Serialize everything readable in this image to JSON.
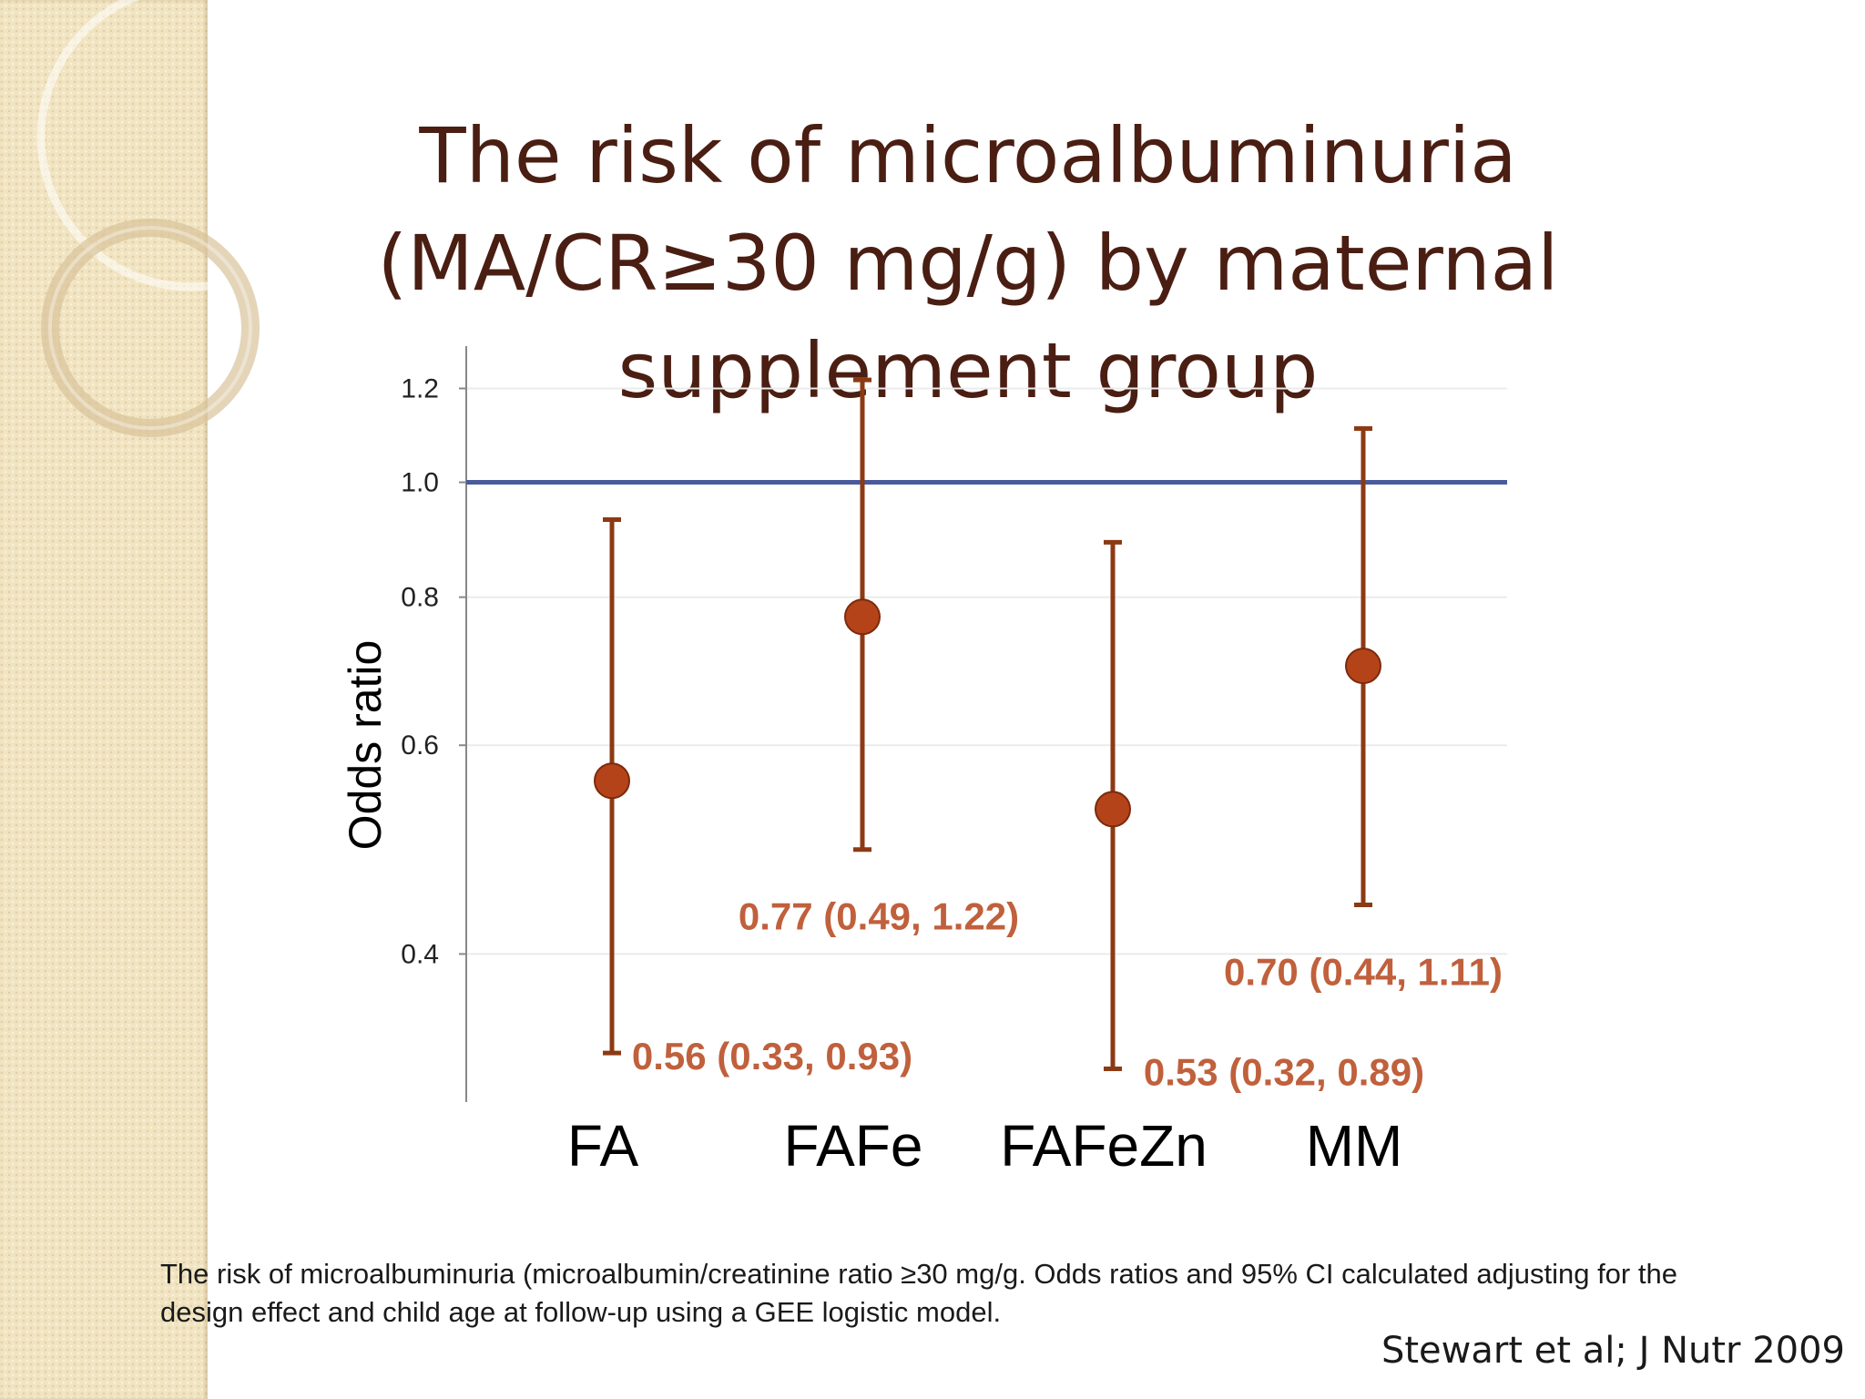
{
  "slide": {
    "title": "The risk of microalbuminuria (MA/CR≥30 mg/g) by maternal supplement group",
    "caption": "The risk of microalbuminuria (microalbumin/creatinine ratio  ≥30 mg/g. Odds ratios and 95% CI calculated adjusting for the design effect and child age at follow-up using a GEE logistic model.",
    "citation": "Stewart et al; J Nutr 2009"
  },
  "colors": {
    "title": "#4a1e12",
    "point": "#b5431a",
    "whisker": "#8c3a14",
    "annotation": "#c0603c",
    "reference_line": "#4a5a9c",
    "axis": "#888888",
    "grid": "#ebebeb"
  },
  "chart_data": {
    "type": "scatter",
    "subtype": "forest-plot",
    "title": "",
    "xlabel": "",
    "ylabel": "Odds ratio",
    "y_scale": "log",
    "ylim": [
      0.3,
      1.28
    ],
    "yticks": [
      0.4,
      0.6,
      0.8,
      1.0,
      1.2
    ],
    "ytick_labels": [
      "0.4",
      "0.6",
      "0.8",
      "1.0",
      "1.2"
    ],
    "grid": true,
    "reference_line": 1.0,
    "categories": [
      "FA",
      "FAFe",
      "FAFeZn",
      "MM"
    ],
    "series": [
      {
        "values": [
          0.56,
          0.77,
          0.53,
          0.7
        ],
        "ci_low": [
          0.33,
          0.49,
          0.32,
          0.44
        ],
        "ci_high": [
          0.93,
          1.22,
          0.89,
          1.11
        ],
        "labels": [
          "0.56 (0.33, 0.93)",
          "0.77 (0.49, 1.22)",
          "0.53 (0.32, 0.89)",
          "0.70 (0.44, 1.11)"
        ]
      }
    ]
  }
}
